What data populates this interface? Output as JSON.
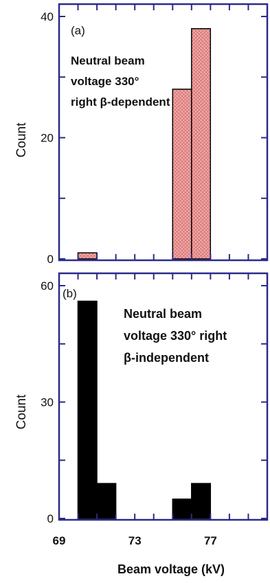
{
  "figure": {
    "axis_color": "#2a2a8c",
    "x_label": "Beam voltage  (kV)",
    "x_ticks": [
      69,
      73,
      77
    ],
    "x_range": [
      69,
      80
    ]
  },
  "chart_data": [
    {
      "type": "bar",
      "panel_label": "(a)",
      "annotation_lines": [
        "Neutral beam",
        "voltage 330°",
        "right β-dependent"
      ],
      "ylabel": "Count",
      "ylim": [
        0,
        40
      ],
      "y_ticks": [
        0,
        20,
        40
      ],
      "bar_fill": "#f4a8a8",
      "bar_pattern": "cross-hatch",
      "bins": [
        {
          "x0": 70.0,
          "x1": 71.0,
          "value": 1
        },
        {
          "x0": 75.0,
          "x1": 76.0,
          "value": 28
        },
        {
          "x0": 76.0,
          "x1": 77.0,
          "value": 38
        }
      ]
    },
    {
      "type": "bar",
      "panel_label": "(b)",
      "annotation_lines": [
        "Neutral beam",
        "voltage 330° right",
        "β-independent"
      ],
      "ylabel": "Count",
      "ylim": [
        0,
        60
      ],
      "y_ticks": [
        0,
        30,
        60
      ],
      "bar_fill": "#000000",
      "bins": [
        {
          "x0": 70.0,
          "x1": 71.0,
          "value": 56
        },
        {
          "x0": 71.0,
          "x1": 72.0,
          "value": 9
        },
        {
          "x0": 75.0,
          "x1": 76.0,
          "value": 5
        },
        {
          "x0": 76.0,
          "x1": 77.0,
          "value": 9
        }
      ]
    }
  ]
}
